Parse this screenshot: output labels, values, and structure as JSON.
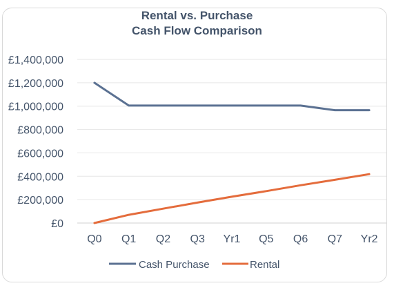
{
  "chart_data": {
    "type": "line",
    "title_line1": "Rental vs. Purchase",
    "title_line2": "Cash Flow Comparison",
    "categories": [
      "Q0",
      "Q1",
      "Q2",
      "Q3",
      "Yr1",
      "Q5",
      "Q6",
      "Q7",
      "Yr2"
    ],
    "y_ticks": [
      "£0",
      "£200,000",
      "£400,000",
      "£600,000",
      "£800,000",
      "£1,000,000",
      "£1,200,000",
      "£1,400,000"
    ],
    "ylim": [
      0,
      1400000
    ],
    "grid": true,
    "legend_position": "bottom",
    "series": [
      {
        "name": "Cash Purchase",
        "color": "#5b7192",
        "values": [
          1200000,
          1005000,
          1005000,
          1005000,
          1005000,
          1005000,
          1005000,
          965000,
          965000
        ]
      },
      {
        "name": "Rental",
        "color": "#e46c3c",
        "values": [
          0,
          70000,
          123000,
          175000,
          225000,
          273000,
          323000,
          370000,
          418000
        ]
      }
    ]
  }
}
